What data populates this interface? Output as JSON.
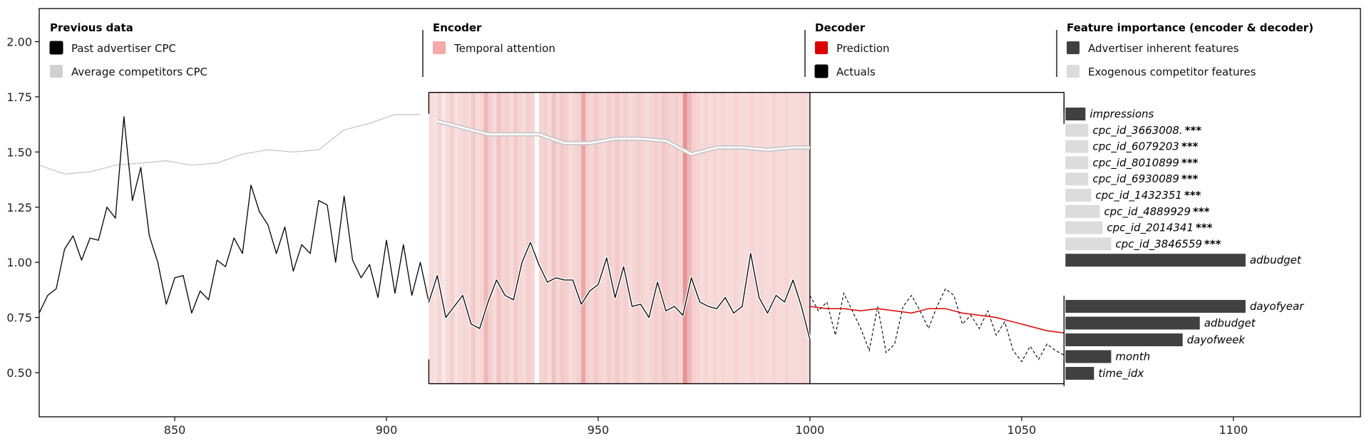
{
  "chart_data": {
    "type": "line",
    "title": "",
    "xlabel": "",
    "ylabel": "",
    "xlim": [
      818,
      1130
    ],
    "ylim": [
      0.3,
      2.15
    ],
    "x_ticks": [
      850,
      900,
      950,
      1000,
      1050,
      1100
    ],
    "y_ticks": [
      0.5,
      0.75,
      1.0,
      1.25,
      1.5,
      1.75,
      2.0
    ],
    "legend_groups": [
      {
        "title": "Previous data",
        "items": [
          {
            "label": "Past advertiser CPC",
            "color": "#000000"
          },
          {
            "label": "Average competitors CPC",
            "color": "#d0d0d0"
          }
        ]
      },
      {
        "title": "Encoder",
        "items": [
          {
            "label": "Temporal attention",
            "color": "#f4aaaa"
          }
        ]
      },
      {
        "title": "Decoder",
        "items": [
          {
            "label": "Prediction",
            "color": "#dd0000"
          },
          {
            "label": "Actuals",
            "color": "#000000"
          }
        ]
      },
      {
        "title": "Feature importance (encoder & decoder)",
        "items": [
          {
            "label": "Advertiser inherent features",
            "color": "#404040"
          },
          {
            "label": "Exogenous competitor features",
            "color": "#dcdcdc"
          }
        ]
      }
    ],
    "encoder_window": {
      "x_start": 910,
      "x_end": 1000,
      "y_bottom": 0.45,
      "y_top": 1.77
    },
    "decoder_window": {
      "x_start": 1000,
      "x_end": 1060,
      "y_bottom": 0.45,
      "y_top": 1.77
    },
    "attention_weights": [
      0.3,
      0.25,
      0.35,
      0.2,
      0.3,
      0.4,
      0.25,
      0.3,
      0.35,
      0.3,
      0.45,
      0.3,
      0.35,
      0.6,
      0.4,
      0.3,
      0.5,
      0.35,
      0.4,
      0.3,
      0.45,
      0.35,
      0.3,
      0.4,
      0.35,
      0.0,
      0.35,
      0.4,
      0.3,
      0.5,
      0.35,
      0.45,
      0.4,
      0.3,
      0.35,
      0.4,
      0.75,
      0.4,
      0.35,
      0.45,
      0.35,
      0.3,
      0.4,
      0.35,
      0.45,
      0.35,
      0.4,
      0.3,
      0.35,
      0.4,
      0.35,
      0.3,
      0.35,
      0.4,
      0.35,
      0.45,
      0.4,
      0.35,
      0.4,
      0.35,
      0.9,
      0.6,
      0.4,
      0.35,
      0.3,
      0.35,
      0.3,
      0.35,
      0.3,
      0.35,
      0.3,
      0.3,
      0.35,
      0.3,
      0.3,
      0.3,
      0.35,
      0.3,
      0.35,
      0.3,
      0.3,
      0.35,
      0.3,
      0.3,
      0.35,
      0.3,
      0.3,
      0.3,
      0.35,
      0.3
    ],
    "series": [
      {
        "name": "Past advertiser CPC",
        "color": "#000000",
        "x": [
          818,
          820,
          822,
          824,
          826,
          828,
          830,
          832,
          834,
          836,
          838,
          840,
          842,
          844,
          846,
          848,
          850,
          852,
          854,
          856,
          858,
          860,
          862,
          864,
          866,
          868,
          870,
          872,
          874,
          876,
          878,
          880,
          882,
          884,
          886,
          888,
          890,
          892,
          894,
          896,
          898,
          900,
          902,
          904,
          906,
          908,
          910,
          912,
          914,
          916,
          918,
          920,
          922,
          924,
          926,
          928,
          930,
          932,
          934,
          936,
          938,
          940,
          942,
          944,
          946,
          948,
          950,
          952,
          954,
          956,
          958,
          960,
          962,
          964,
          966,
          968,
          970,
          972,
          974,
          976,
          978,
          980,
          982,
          984,
          986,
          988,
          990,
          992,
          994,
          996,
          998,
          1000
        ],
        "y": [
          0.77,
          0.85,
          0.88,
          1.06,
          1.12,
          1.01,
          1.11,
          1.1,
          1.25,
          1.2,
          1.66,
          1.28,
          1.43,
          1.12,
          1.0,
          0.81,
          0.93,
          0.94,
          0.77,
          0.87,
          0.83,
          1.01,
          0.98,
          1.11,
          1.04,
          1.35,
          1.23,
          1.17,
          1.04,
          1.16,
          0.96,
          1.08,
          1.04,
          1.28,
          1.26,
          1.0,
          1.3,
          1.01,
          0.93,
          0.99,
          0.84,
          1.1,
          0.86,
          1.08,
          0.85,
          1.0,
          0.82,
          0.94,
          0.75,
          0.8,
          0.85,
          0.72,
          0.7,
          0.82,
          0.92,
          0.85,
          0.83,
          1.0,
          1.09,
          0.99,
          0.91,
          0.93,
          0.92,
          0.92,
          0.81,
          0.87,
          0.9,
          1.02,
          0.84,
          0.98,
          0.8,
          0.81,
          0.75,
          0.91,
          0.78,
          0.8,
          0.76,
          0.93,
          0.82,
          0.8,
          0.79,
          0.84,
          0.77,
          0.8,
          1.04,
          0.84,
          0.77,
          0.85,
          0.82,
          0.92,
          0.8,
          0.65
        ],
        "draw_range": [
          818,
          1000
        ]
      },
      {
        "name": "Average competitors CPC",
        "color": "#c8c8c8",
        "x": [
          818,
          824,
          830,
          836,
          842,
          848,
          854,
          860,
          866,
          872,
          878,
          884,
          890,
          896,
          902,
          908,
          912,
          918,
          924,
          930,
          936,
          942,
          948,
          954,
          960,
          966,
          972,
          978,
          984,
          990,
          996,
          1000
        ],
        "y": [
          1.44,
          1.4,
          1.41,
          1.44,
          1.45,
          1.46,
          1.44,
          1.45,
          1.49,
          1.51,
          1.5,
          1.51,
          1.6,
          1.63,
          1.67,
          1.67,
          1.64,
          1.61,
          1.58,
          1.58,
          1.58,
          1.54,
          1.54,
          1.56,
          1.56,
          1.55,
          1.49,
          1.52,
          1.52,
          1.51,
          1.52,
          1.52
        ]
      },
      {
        "name": "Prediction",
        "color": "#dd0000",
        "x": [
          1000,
          1004,
          1008,
          1012,
          1016,
          1020,
          1024,
          1028,
          1032,
          1036,
          1040,
          1044,
          1048,
          1052,
          1056,
          1060
        ],
        "y": [
          0.8,
          0.79,
          0.79,
          0.78,
          0.79,
          0.78,
          0.77,
          0.79,
          0.79,
          0.77,
          0.76,
          0.75,
          0.73,
          0.71,
          0.69,
          0.68
        ]
      },
      {
        "name": "Actuals",
        "color": "#000000",
        "x": [
          1000,
          1002,
          1004,
          1006,
          1008,
          1010,
          1012,
          1014,
          1016,
          1018,
          1020,
          1022,
          1024,
          1026,
          1028,
          1030,
          1032,
          1034,
          1036,
          1038,
          1040,
          1042,
          1044,
          1046,
          1048,
          1050,
          1052,
          1054,
          1056,
          1058,
          1060
        ],
        "y": [
          0.85,
          0.78,
          0.82,
          0.67,
          0.86,
          0.78,
          0.7,
          0.6,
          0.8,
          0.59,
          0.63,
          0.8,
          0.85,
          0.78,
          0.7,
          0.8,
          0.88,
          0.85,
          0.72,
          0.76,
          0.7,
          0.78,
          0.67,
          0.73,
          0.6,
          0.55,
          0.62,
          0.56,
          0.63,
          0.6,
          0.58
        ]
      }
    ],
    "feature_importance": {
      "base_x": 1060,
      "encoder": [
        {
          "name": "impressions",
          "value": 7,
          "group": "inherent",
          "stars": ""
        },
        {
          "name": "cpc_id_3663008.",
          "value": 8,
          "group": "exogenous",
          "stars": "***"
        },
        {
          "name": "cpc_id_6079203",
          "value": 8,
          "group": "exogenous",
          "stars": "***"
        },
        {
          "name": "cpc_id_8010899",
          "value": 8,
          "group": "exogenous",
          "stars": "***"
        },
        {
          "name": "cpc_id_6930089",
          "value": 8,
          "group": "exogenous",
          "stars": "***"
        },
        {
          "name": "cpc_id_1432351",
          "value": 9,
          "group": "exogenous",
          "stars": "***"
        },
        {
          "name": "cpc_id_4889929",
          "value": 12,
          "group": "exogenous",
          "stars": "***"
        },
        {
          "name": "cpc_id_2014341",
          "value": 13,
          "group": "exogenous",
          "stars": "***"
        },
        {
          "name": "cpc_id_3846559",
          "value": 16,
          "group": "exogenous",
          "stars": "***"
        },
        {
          "name": "adbudget",
          "value": 63,
          "group": "inherent",
          "stars": ""
        }
      ],
      "decoder": [
        {
          "name": "dayofyear",
          "value": 63,
          "group": "inherent"
        },
        {
          "name": "adbudget",
          "value": 47,
          "group": "inherent"
        },
        {
          "name": "dayofweek",
          "value": 41,
          "group": "inherent"
        },
        {
          "name": "month",
          "value": 16,
          "group": "inherent"
        },
        {
          "name": "time_idx",
          "value": 10,
          "group": "inherent"
        }
      ]
    }
  }
}
